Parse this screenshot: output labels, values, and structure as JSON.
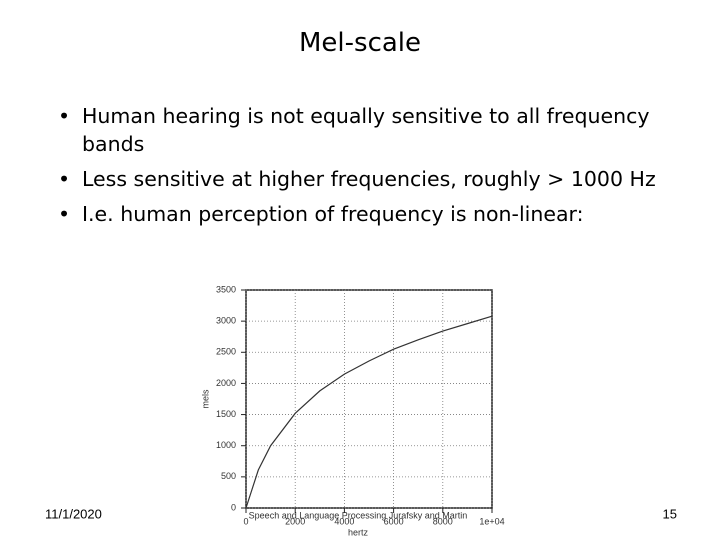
{
  "slide": {
    "title": "Mel-scale",
    "bullets": [
      "Human hearing is not equally sensitive to all frequency bands",
      "Less sensitive at higher frequencies, roughly > 1000 Hz",
      "I.e. human perception of frequency is non-linear:"
    ],
    "date": "11/1/2020",
    "page": "15",
    "source": "Speech and Language Processing  Jurafsky and Martin"
  },
  "chart_data": {
    "type": "line",
    "xlabel": "hertz",
    "ylabel": "mels",
    "x": [
      0,
      500,
      1000,
      2000,
      3000,
      4000,
      5000,
      6000,
      7000,
      8000,
      9000,
      10000
    ],
    "values": [
      0,
      610,
      1000,
      1520,
      1880,
      2150,
      2360,
      2550,
      2700,
      2840,
      2960,
      3080
    ],
    "color": "#333333",
    "xlim": [
      0,
      10000
    ],
    "xticks": [
      0,
      2000,
      4000,
      6000,
      8000,
      {
        "value": 10000,
        "label": "1e+04"
      }
    ],
    "ylim": [
      0,
      3500
    ],
    "yticks": [
      0,
      500,
      1000,
      1500,
      2000,
      2500,
      3000,
      3500
    ],
    "grid": true
  }
}
